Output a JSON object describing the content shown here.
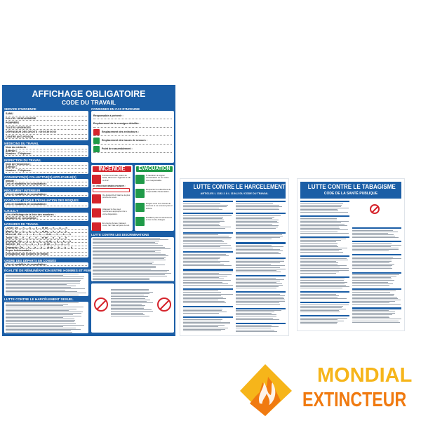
{
  "main_poster": {
    "title": "AFFICHAGE OBLIGATOIRE",
    "subtitle": "CODE DU TRAVAIL",
    "left_sections": [
      {
        "heading": "SERVICE D'URGENCE",
        "rows": [
          "SAMU",
          "POLICE / GENDARMERIE",
          "POMPIERS",
          "TOUTES URGENCES",
          "DÉFENSEUR DES DROITS : 09 69 39 00 00",
          "CENTRE ANTI-POISON"
        ]
      },
      {
        "heading": "MÉDECINS DU TRAVAIL",
        "rows": [
          "Nom du médecin :",
          "Adresse :",
          "Horaires :                Téléphone :"
        ]
      },
      {
        "heading": "INSPECTION DU TRAVAIL",
        "rows": [
          "Nom de l'inspecteur :",
          "Adresse :",
          "Horaires :                Téléphone :"
        ]
      },
      {
        "heading": "CONVENTION(S) COLLECTIVE(S) APPLICABLE(S)",
        "rows": [
          "Intitulé :",
          "Lieu et modalités de consultation :"
        ]
      },
      {
        "heading": "RÈGLEMENT INTÉRIEUR",
        "rows": [
          "Lieu et modalités de consultation :"
        ]
      },
      {
        "heading": "DOCUMENT UNIQUE D'ÉVALUATION DES RISQUES",
        "rows": [
          "Lieu et modalités de consultation :"
        ]
      },
      {
        "heading": "C.H.S.C.T",
        "rows": [
          "Lieu d'affichage de la liste des membres :",
          "Modalités de consultation :"
        ]
      },
      {
        "heading": "HORAIRES DE TRAVAIL",
        "rows": [
          "Lundi :    De ..... h ..... à ..... h ..... et de ..... h ..... à ..... h",
          "Mardi :    De ..... h ..... à ..... h ..... et de ..... h ..... à ..... h",
          "Mercredi : De ..... h ..... à ..... h ..... et de ..... h ..... à ..... h",
          "Jeudi :    De ..... h ..... à ..... h ..... et de ..... h ..... à ..... h",
          "Vendredi : De ..... h ..... à ..... h ..... et de ..... h ..... à ..... h",
          "Samedi :   De ..... h ..... à ..... h ..... et de ..... h ..... à ..... h",
          "Dimanche : De ..... h ..... à ..... h ..... et de ..... h ..... à ..... h",
          "Repos hebdomadaire :",
          "Dérogations aux horaires de travail :"
        ]
      },
      {
        "heading": "ORDRE DES DÉPARTS EN CONGÉS",
        "rows": [
          "Lieu et modalités de consultation :"
        ]
      }
    ],
    "equality_heading": "ÉGALITÉ DE RÉMUNÉRATION ENTRE HOMMES ET FEMMES",
    "harassment_heading": "LUTTE CONTRE LE HARCÈLEMENT SEXUEL",
    "fire_instructions": {
      "heading": "CONSIGNES EN CAS D'INCENDIE",
      "rows": [
        "Responsable à prévenir :",
        "Emplacement de la consigne détaillée :",
        "Emplacement des extincteurs :",
        "Emplacement des issues de secours :",
        "Point de rassemblement :"
      ]
    },
    "incendie": {
      "title": "INCENDIE",
      "field_label": "OU (PRÉCISER IMMÉDIATEMENT) :",
      "steps": [
        "Fumée anormale, odeur de brûlé, flammes ? Appelez le 18 ou 112",
        "Ou déclenchez l'alarme la plus proche de vous.",
        "Attaquez le feu avec l'extincteur approprié mis à votre disposition.",
        "En cas de fumée, baissez-vous, l'air frais est près du sol."
      ]
    },
    "evacuation": {
      "title": "EVACUATION",
      "steps": [
        "À l'audition du signal d'évacuation ou sur ordre d'un responsable.",
        "Respectez les directives du responsable d'évacuation.",
        "Dirigez-vous vers l'issue de secours et ne revenez pas en arrière.",
        "N'utilisez pas les ascenseurs et les monte-charges."
      ]
    },
    "discrimination_heading": "LUTTE CONTRE LES DISCRIMINATIONS"
  },
  "harcelement_poster": {
    "title": "LUTTE CONTRE LE HARCELEMENT",
    "subtitle": "ARTICLES L 1152-1 À L 1154-2 DU CODE DU TRAVAIL"
  },
  "tabagisme_poster": {
    "title": "LUTTE CONTRE LE TABAGISME",
    "subtitle": "CODE DE LA SANTÉ PUBLIQUE"
  },
  "brand": {
    "line1": "MONDIAL",
    "line2": "EXTINCTEUR",
    "colors": {
      "yellow": "#f6b51a",
      "orange": "#f07a10"
    }
  },
  "colors": {
    "poster_blue": "#1b5ea6",
    "incendie_red": "#d5242c",
    "evacuation_green": "#1f9a48"
  }
}
